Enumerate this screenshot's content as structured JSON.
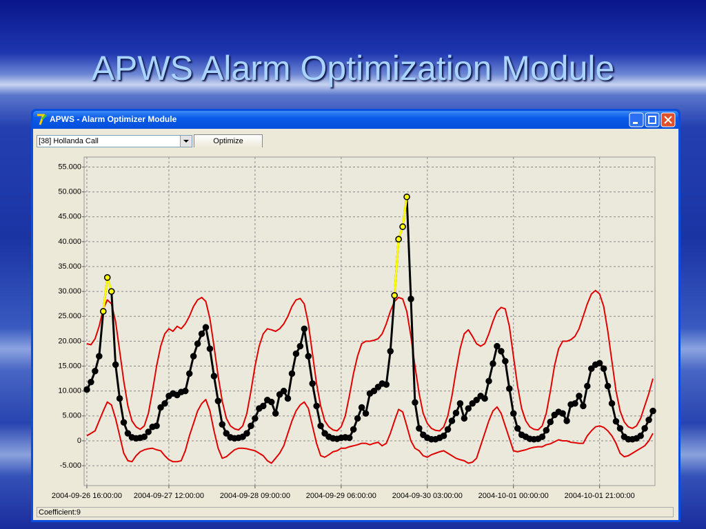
{
  "slide": {
    "title": "APWS Alarm Optimization Module"
  },
  "window": {
    "title": "APWS - Alarm Optimizer Module",
    "dropdown": "[38] Hollanda Call",
    "button": "Optimize",
    "status": "Coefficient:9"
  },
  "chart_data": {
    "type": "line",
    "x": [
      "2004-09-26 16:00:00",
      "2004-09-26 17:00:00",
      "2004-09-26 18:00:00",
      "2004-09-26 19:00:00",
      "2004-09-26 20:00:00",
      "2004-09-26 21:00:00",
      "2004-09-26 22:00:00",
      "2004-09-26 23:00:00",
      "2004-09-27 00:00:00",
      "2004-09-27 01:00:00",
      "2004-09-27 02:00:00",
      "2004-09-27 03:00:00",
      "2004-09-27 04:00:00",
      "2004-09-27 05:00:00",
      "2004-09-27 06:00:00",
      "2004-09-27 07:00:00",
      "2004-09-27 08:00:00",
      "2004-09-27 09:00:00",
      "2004-09-27 10:00:00",
      "2004-09-27 11:00:00",
      "2004-09-27 12:00:00",
      "2004-09-27 13:00:00",
      "2004-09-27 14:00:00",
      "2004-09-27 15:00:00",
      "2004-09-27 16:00:00",
      "2004-09-27 17:00:00",
      "2004-09-27 18:00:00",
      "2004-09-27 19:00:00",
      "2004-09-27 20:00:00",
      "2004-09-27 21:00:00",
      "2004-09-27 22:00:00",
      "2004-09-27 23:00:00",
      "2004-09-28 00:00:00",
      "2004-09-28 01:00:00",
      "2004-09-28 02:00:00",
      "2004-09-28 03:00:00",
      "2004-09-28 04:00:00",
      "2004-09-28 05:00:00",
      "2004-09-28 06:00:00",
      "2004-09-28 07:00:00",
      "2004-09-28 08:00:00",
      "2004-09-28 09:00:00",
      "2004-09-28 10:00:00",
      "2004-09-28 11:00:00",
      "2004-09-28 12:00:00",
      "2004-09-28 13:00:00",
      "2004-09-28 14:00:00",
      "2004-09-28 15:00:00",
      "2004-09-28 16:00:00",
      "2004-09-28 17:00:00",
      "2004-09-28 18:00:00",
      "2004-09-28 19:00:00",
      "2004-09-28 20:00:00",
      "2004-09-28 21:00:00",
      "2004-09-28 22:00:00",
      "2004-09-28 23:00:00",
      "2004-09-29 00:00:00",
      "2004-09-29 01:00:00",
      "2004-09-29 02:00:00",
      "2004-09-29 03:00:00",
      "2004-09-29 04:00:00",
      "2004-09-29 05:00:00",
      "2004-09-29 06:00:00",
      "2004-09-29 07:00:00",
      "2004-09-29 08:00:00",
      "2004-09-29 09:00:00",
      "2004-09-29 10:00:00",
      "2004-09-29 11:00:00",
      "2004-09-29 12:00:00",
      "2004-09-29 13:00:00",
      "2004-09-29 14:00:00",
      "2004-09-29 15:00:00",
      "2004-09-29 16:00:00",
      "2004-09-29 17:00:00",
      "2004-09-29 18:00:00",
      "2004-09-29 19:00:00",
      "2004-09-29 20:00:00",
      "2004-09-29 21:00:00",
      "2004-09-29 22:00:00",
      "2004-09-29 23:00:00",
      "2004-09-30 00:00:00",
      "2004-09-30 01:00:00",
      "2004-09-30 02:00:00",
      "2004-09-30 03:00:00",
      "2004-09-30 04:00:00",
      "2004-09-30 05:00:00",
      "2004-09-30 06:00:00",
      "2004-09-30 07:00:00",
      "2004-09-30 08:00:00",
      "2004-09-30 09:00:00",
      "2004-09-30 10:00:00",
      "2004-09-30 11:00:00",
      "2004-09-30 12:00:00",
      "2004-09-30 13:00:00",
      "2004-09-30 14:00:00",
      "2004-09-30 15:00:00",
      "2004-09-30 16:00:00",
      "2004-09-30 17:00:00",
      "2004-09-30 18:00:00",
      "2004-09-30 19:00:00",
      "2004-09-30 20:00:00",
      "2004-09-30 21:00:00",
      "2004-09-30 22:00:00",
      "2004-09-30 23:00:00",
      "2004-10-01 00:00:00",
      "2004-10-01 01:00:00",
      "2004-10-01 02:00:00",
      "2004-10-01 03:00:00",
      "2004-10-01 04:00:00",
      "2004-10-01 05:00:00",
      "2004-10-01 06:00:00",
      "2004-10-01 07:00:00",
      "2004-10-01 08:00:00",
      "2004-10-01 09:00:00",
      "2004-10-01 10:00:00",
      "2004-10-01 11:00:00",
      "2004-10-01 12:00:00",
      "2004-10-01 13:00:00",
      "2004-10-01 14:00:00",
      "2004-10-01 15:00:00",
      "2004-10-01 16:00:00",
      "2004-10-01 17:00:00",
      "2004-10-01 18:00:00",
      "2004-10-01 19:00:00",
      "2004-10-01 20:00:00",
      "2004-10-01 21:00:00",
      "2004-10-01 22:00:00",
      "2004-10-01 23:00:00",
      "2004-10-02 00:00:00",
      "2004-10-02 01:00:00",
      "2004-10-02 02:00:00",
      "2004-10-02 03:00:00",
      "2004-10-02 04:00:00",
      "2004-10-02 05:00:00",
      "2004-10-02 06:00:00",
      "2004-10-02 07:00:00",
      "2004-10-02 08:00:00",
      "2004-10-02 09:00:00",
      "2004-10-02 10:00:00"
    ],
    "series": [
      {
        "color": "#e00000",
        "values": [
          19500,
          19300,
          20500,
          23000,
          26500,
          28300,
          27500,
          24000,
          18000,
          12000,
          7000,
          4000,
          2800,
          2300,
          3000,
          5500,
          10000,
          15000,
          19000,
          21500,
          22500,
          22000,
          23000,
          22500,
          23500,
          25000,
          27000,
          28300,
          28800,
          28000,
          24500,
          19000,
          13000,
          8000,
          4500,
          3000,
          2400,
          2200,
          3000,
          5500,
          10000,
          15000,
          19000,
          21500,
          22500,
          22300,
          22000,
          22500,
          23500,
          25000,
          27000,
          28300,
          28600,
          27500,
          23500,
          17500,
          11500,
          7000,
          4000,
          2800,
          2200,
          2000,
          2800,
          5000,
          9000,
          13500,
          17000,
          19500,
          20000,
          20000,
          20200,
          20500,
          21500,
          23500,
          26000,
          28000,
          28800,
          28500,
          26000,
          21000,
          15000,
          9500,
          5500,
          3500,
          2500,
          2100,
          2000,
          2800,
          5000,
          9000,
          14000,
          18500,
          21500,
          22300,
          21000,
          19500,
          19000,
          19500,
          21500,
          24000,
          26000,
          26800,
          26500,
          23000,
          17000,
          11000,
          6500,
          4000,
          2800,
          2300,
          2200,
          3000,
          5500,
          10000,
          15000,
          18500,
          20000,
          20000,
          20300,
          21000,
          22500,
          25000,
          27500,
          29500,
          30200,
          29500,
          27000,
          22000,
          16000,
          10000,
          6000,
          3800,
          2800,
          2500,
          3000,
          4500,
          7000,
          9500,
          12500
        ]
      },
      {
        "color": "#e00000",
        "values": [
          1000,
          1500,
          2000,
          4000,
          6000,
          7800,
          7200,
          4500,
          1000,
          -2500,
          -4000,
          -4200,
          -3000,
          -2200,
          -1800,
          -1600,
          -1500,
          -1800,
          -2000,
          -3000,
          -3800,
          -4200,
          -4200,
          -4000,
          -2000,
          1000,
          3500,
          6000,
          7500,
          8300,
          6000,
          2000,
          -1500,
          -3500,
          -3200,
          -2500,
          -1800,
          -1500,
          -1500,
          -1600,
          -1800,
          -2000,
          -2500,
          -3000,
          -4000,
          -4500,
          -3500,
          -2500,
          -1000,
          1500,
          4000,
          6000,
          7200,
          7800,
          6500,
          3000,
          -500,
          -3000,
          -3300,
          -2800,
          -2200,
          -2000,
          -1500,
          -1500,
          -1200,
          -1000,
          -800,
          -500,
          -500,
          -800,
          -500,
          -300,
          -1000,
          -500,
          1500,
          4000,
          6300,
          5800,
          3000,
          0,
          -1500,
          -2000,
          -3000,
          -3300,
          -2800,
          -2500,
          -2200,
          -2000,
          -2500,
          -3000,
          -3500,
          -3800,
          -4000,
          -4500,
          -4300,
          -3500,
          -1000,
          1500,
          4000,
          6000,
          6800,
          5500,
          3000,
          500,
          -2000,
          -2200,
          -2000,
          -1800,
          -1500,
          -1300,
          -1200,
          -1200,
          -800,
          -600,
          -200,
          200,
          0,
          0,
          -300,
          -400,
          -500,
          -500,
          1000,
          2000,
          2800,
          3000,
          2700,
          2000,
          1000,
          -500,
          -2500,
          -3200,
          -3000,
          -2500,
          -2000,
          -1500,
          -1000,
          0,
          1500
        ]
      },
      {
        "color": "#000000",
        "markers": true,
        "values": [
          10300,
          11800,
          14000,
          17000,
          26000,
          32800,
          30000,
          15300,
          8500,
          3700,
          1500,
          700,
          500,
          600,
          800,
          1800,
          2800,
          3000,
          6700,
          7500,
          9000,
          9500,
          9200,
          9800,
          10000,
          13500,
          17000,
          19500,
          21500,
          22800,
          18500,
          13000,
          8000,
          3300,
          1500,
          700,
          500,
          600,
          800,
          1500,
          3000,
          4500,
          6500,
          7000,
          8200,
          7800,
          5500,
          9300,
          10000,
          8500,
          13500,
          17500,
          19000,
          22500,
          17000,
          11500,
          7000,
          3000,
          1500,
          800,
          500,
          400,
          600,
          700,
          600,
          2300,
          4500,
          6700,
          5500,
          9500,
          10000,
          10800,
          11500,
          11300,
          18000,
          29200,
          40500,
          43000,
          49000,
          28500,
          7700,
          2500,
          1200,
          600,
          300,
          300,
          600,
          1000,
          2300,
          4000,
          5600,
          7500,
          4500,
          6500,
          7500,
          8200,
          9000,
          8500,
          12000,
          15500,
          19000,
          18000,
          16000,
          10500,
          5500,
          2500,
          1200,
          800,
          400,
          300,
          400,
          800,
          2100,
          3800,
          5200,
          5800,
          5500,
          4000,
          7300,
          7500,
          9000,
          7000,
          11000,
          14500,
          15300,
          15600,
          14500,
          11000,
          7500,
          3900,
          2500,
          800,
          300,
          300,
          500,
          1000,
          2500,
          4200,
          6000
        ]
      },
      {
        "color": "#ffff00",
        "markers": true,
        "values": [
          null,
          null,
          null,
          null,
          26000,
          32800,
          30000,
          null,
          null,
          null,
          null,
          null,
          null,
          null,
          null,
          null,
          null,
          null,
          null,
          null,
          null,
          null,
          null,
          null,
          null,
          null,
          null,
          null,
          null,
          null,
          null,
          null,
          null,
          null,
          null,
          null,
          null,
          null,
          null,
          null,
          null,
          null,
          null,
          null,
          null,
          null,
          null,
          null,
          null,
          null,
          null,
          null,
          null,
          null,
          null,
          null,
          null,
          null,
          null,
          null,
          null,
          null,
          null,
          null,
          null,
          null,
          null,
          null,
          null,
          null,
          null,
          null,
          null,
          null,
          null,
          29200,
          40500,
          43000,
          49000,
          null,
          null,
          null,
          null,
          null,
          null,
          null,
          null,
          null,
          null,
          null,
          null,
          null,
          null,
          null,
          null,
          null,
          null,
          null,
          null,
          null,
          null,
          null,
          null,
          null,
          null,
          null,
          null,
          null,
          null,
          null,
          null,
          null,
          null,
          null,
          null,
          null,
          null,
          null,
          null,
          null,
          null,
          null,
          null,
          null,
          null,
          null,
          null,
          null,
          null,
          null,
          null,
          null,
          null,
          null,
          null,
          null,
          null,
          null,
          null
        ]
      }
    ],
    "xlim": [
      "2004-09-26 15:20:00",
      "2004-10-02 10:30:00"
    ],
    "xticks": [
      "2004-09-26 16:00:00",
      "2004-09-27 12:00:00",
      "2004-09-28 09:00:00",
      "2004-09-29 06:00:00",
      "2004-09-30 03:00:00",
      "2004-10-01 00:00:00",
      "2004-10-01 21:00:00"
    ],
    "ylim": [
      -9000,
      57000
    ],
    "yticks": [
      {
        "value": -5000,
        "label": "-5.000"
      },
      0,
      {
        "value": 5000,
        "label": "5.000"
      },
      {
        "value": 10000,
        "label": "10.000"
      },
      {
        "value": 15000,
        "label": "15.000"
      },
      {
        "value": 20000,
        "label": "20.000"
      },
      {
        "value": 25000,
        "label": "25.000"
      },
      {
        "value": 30000,
        "label": "30.000"
      },
      {
        "value": 35000,
        "label": "35.000"
      },
      {
        "value": 40000,
        "label": "40.000"
      },
      {
        "value": 45000,
        "label": "45.000"
      },
      {
        "value": 50000,
        "label": "50.000"
      },
      {
        "value": 55000,
        "label": "55.000"
      }
    ],
    "grid": true
  }
}
